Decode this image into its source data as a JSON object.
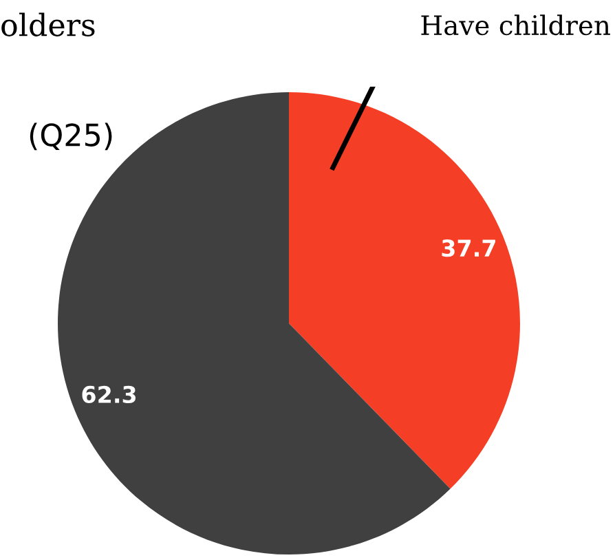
{
  "chart_data": {
    "type": "pie",
    "categories": [
      "Have children",
      null
    ],
    "values": [
      37.7,
      62.3
    ],
    "colors": [
      "#f43f26",
      "#404040"
    ],
    "data_labels": true,
    "annotations": [
      "olders",
      "(Q25)"
    ]
  }
}
